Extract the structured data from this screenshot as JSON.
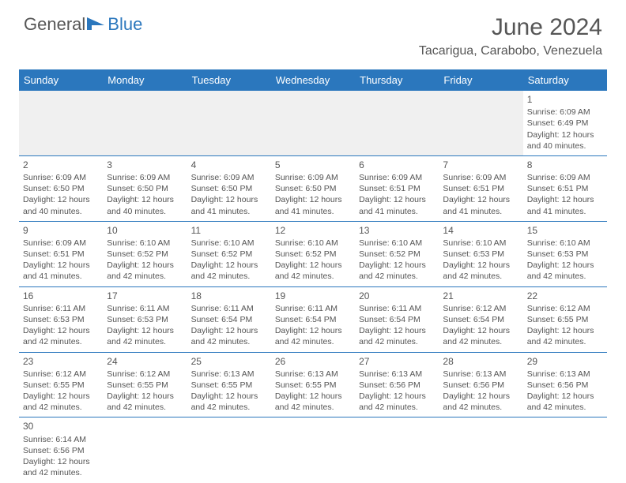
{
  "brand": {
    "part1": "General",
    "part2": "Blue",
    "logo_color": "#2b77bd",
    "text_color": "#565656"
  },
  "title": {
    "month_year": "June 2024",
    "location": "Tacarigua, Carabobo, Venezuela"
  },
  "header_bg": "#2b77bd",
  "header_text_color": "#ffffff",
  "cell_border_color": "#2b77bd",
  "empty_bg": "#f0f0f0",
  "columns": [
    "Sunday",
    "Monday",
    "Tuesday",
    "Wednesday",
    "Thursday",
    "Friday",
    "Saturday"
  ],
  "weeks": [
    [
      null,
      null,
      null,
      null,
      null,
      null,
      {
        "n": "1",
        "sr": "Sunrise: 6:09 AM",
        "ss": "Sunset: 6:49 PM",
        "d1": "Daylight: 12 hours",
        "d2": "and 40 minutes."
      }
    ],
    [
      {
        "n": "2",
        "sr": "Sunrise: 6:09 AM",
        "ss": "Sunset: 6:50 PM",
        "d1": "Daylight: 12 hours",
        "d2": "and 40 minutes."
      },
      {
        "n": "3",
        "sr": "Sunrise: 6:09 AM",
        "ss": "Sunset: 6:50 PM",
        "d1": "Daylight: 12 hours",
        "d2": "and 40 minutes."
      },
      {
        "n": "4",
        "sr": "Sunrise: 6:09 AM",
        "ss": "Sunset: 6:50 PM",
        "d1": "Daylight: 12 hours",
        "d2": "and 41 minutes."
      },
      {
        "n": "5",
        "sr": "Sunrise: 6:09 AM",
        "ss": "Sunset: 6:50 PM",
        "d1": "Daylight: 12 hours",
        "d2": "and 41 minutes."
      },
      {
        "n": "6",
        "sr": "Sunrise: 6:09 AM",
        "ss": "Sunset: 6:51 PM",
        "d1": "Daylight: 12 hours",
        "d2": "and 41 minutes."
      },
      {
        "n": "7",
        "sr": "Sunrise: 6:09 AM",
        "ss": "Sunset: 6:51 PM",
        "d1": "Daylight: 12 hours",
        "d2": "and 41 minutes."
      },
      {
        "n": "8",
        "sr": "Sunrise: 6:09 AM",
        "ss": "Sunset: 6:51 PM",
        "d1": "Daylight: 12 hours",
        "d2": "and 41 minutes."
      }
    ],
    [
      {
        "n": "9",
        "sr": "Sunrise: 6:09 AM",
        "ss": "Sunset: 6:51 PM",
        "d1": "Daylight: 12 hours",
        "d2": "and 41 minutes."
      },
      {
        "n": "10",
        "sr": "Sunrise: 6:10 AM",
        "ss": "Sunset: 6:52 PM",
        "d1": "Daylight: 12 hours",
        "d2": "and 42 minutes."
      },
      {
        "n": "11",
        "sr": "Sunrise: 6:10 AM",
        "ss": "Sunset: 6:52 PM",
        "d1": "Daylight: 12 hours",
        "d2": "and 42 minutes."
      },
      {
        "n": "12",
        "sr": "Sunrise: 6:10 AM",
        "ss": "Sunset: 6:52 PM",
        "d1": "Daylight: 12 hours",
        "d2": "and 42 minutes."
      },
      {
        "n": "13",
        "sr": "Sunrise: 6:10 AM",
        "ss": "Sunset: 6:52 PM",
        "d1": "Daylight: 12 hours",
        "d2": "and 42 minutes."
      },
      {
        "n": "14",
        "sr": "Sunrise: 6:10 AM",
        "ss": "Sunset: 6:53 PM",
        "d1": "Daylight: 12 hours",
        "d2": "and 42 minutes."
      },
      {
        "n": "15",
        "sr": "Sunrise: 6:10 AM",
        "ss": "Sunset: 6:53 PM",
        "d1": "Daylight: 12 hours",
        "d2": "and 42 minutes."
      }
    ],
    [
      {
        "n": "16",
        "sr": "Sunrise: 6:11 AM",
        "ss": "Sunset: 6:53 PM",
        "d1": "Daylight: 12 hours",
        "d2": "and 42 minutes."
      },
      {
        "n": "17",
        "sr": "Sunrise: 6:11 AM",
        "ss": "Sunset: 6:53 PM",
        "d1": "Daylight: 12 hours",
        "d2": "and 42 minutes."
      },
      {
        "n": "18",
        "sr": "Sunrise: 6:11 AM",
        "ss": "Sunset: 6:54 PM",
        "d1": "Daylight: 12 hours",
        "d2": "and 42 minutes."
      },
      {
        "n": "19",
        "sr": "Sunrise: 6:11 AM",
        "ss": "Sunset: 6:54 PM",
        "d1": "Daylight: 12 hours",
        "d2": "and 42 minutes."
      },
      {
        "n": "20",
        "sr": "Sunrise: 6:11 AM",
        "ss": "Sunset: 6:54 PM",
        "d1": "Daylight: 12 hours",
        "d2": "and 42 minutes."
      },
      {
        "n": "21",
        "sr": "Sunrise: 6:12 AM",
        "ss": "Sunset: 6:54 PM",
        "d1": "Daylight: 12 hours",
        "d2": "and 42 minutes."
      },
      {
        "n": "22",
        "sr": "Sunrise: 6:12 AM",
        "ss": "Sunset: 6:55 PM",
        "d1": "Daylight: 12 hours",
        "d2": "and 42 minutes."
      }
    ],
    [
      {
        "n": "23",
        "sr": "Sunrise: 6:12 AM",
        "ss": "Sunset: 6:55 PM",
        "d1": "Daylight: 12 hours",
        "d2": "and 42 minutes."
      },
      {
        "n": "24",
        "sr": "Sunrise: 6:12 AM",
        "ss": "Sunset: 6:55 PM",
        "d1": "Daylight: 12 hours",
        "d2": "and 42 minutes."
      },
      {
        "n": "25",
        "sr": "Sunrise: 6:13 AM",
        "ss": "Sunset: 6:55 PM",
        "d1": "Daylight: 12 hours",
        "d2": "and 42 minutes."
      },
      {
        "n": "26",
        "sr": "Sunrise: 6:13 AM",
        "ss": "Sunset: 6:55 PM",
        "d1": "Daylight: 12 hours",
        "d2": "and 42 minutes."
      },
      {
        "n": "27",
        "sr": "Sunrise: 6:13 AM",
        "ss": "Sunset: 6:56 PM",
        "d1": "Daylight: 12 hours",
        "d2": "and 42 minutes."
      },
      {
        "n": "28",
        "sr": "Sunrise: 6:13 AM",
        "ss": "Sunset: 6:56 PM",
        "d1": "Daylight: 12 hours",
        "d2": "and 42 minutes."
      },
      {
        "n": "29",
        "sr": "Sunrise: 6:13 AM",
        "ss": "Sunset: 6:56 PM",
        "d1": "Daylight: 12 hours",
        "d2": "and 42 minutes."
      }
    ],
    [
      {
        "n": "30",
        "sr": "Sunrise: 6:14 AM",
        "ss": "Sunset: 6:56 PM",
        "d1": "Daylight: 12 hours",
        "d2": "and 42 minutes."
      },
      null,
      null,
      null,
      null,
      null,
      null
    ]
  ]
}
